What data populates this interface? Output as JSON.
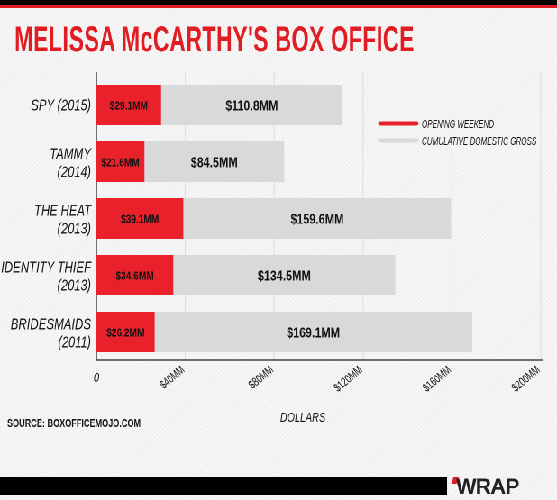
{
  "header": {
    "title": "MELISSA McCARTHY'S BOX OFFICE"
  },
  "footer": {
    "source": "SOURCE: BOXOFFICEMOJO.COM",
    "logo": "WRAP"
  },
  "colors": {
    "opening": "#e8212a",
    "cumulative": "#d9d9d9",
    "title": "#e11d24"
  },
  "chart_data": {
    "type": "bar",
    "orientation": "horizontal",
    "title": "MELISSA McCARTHY'S BOX OFFICE",
    "xlabel": "DOLLARS",
    "ylabel": "",
    "xlim": [
      0,
      200
    ],
    "x_ticks": [
      {
        "value": 0,
        "label": "0"
      },
      {
        "value": 40,
        "label": "$40MM"
      },
      {
        "value": 80,
        "label": "$80MM"
      },
      {
        "value": 120,
        "label": "$120MM"
      },
      {
        "value": 160,
        "label": "$160MM"
      },
      {
        "value": 200,
        "label": "$200MM"
      }
    ],
    "categories": [
      [
        "SPY (2015)"
      ],
      [
        "TAMMY",
        "(2014)"
      ],
      [
        "THE HEAT",
        "(2013)"
      ],
      [
        "IDENTITY THIEF",
        "(2013)"
      ],
      [
        "BRIDESMAIDS",
        "(2011)"
      ]
    ],
    "series": [
      {
        "name": "CUMULATIVE DOMESTIC GROSS",
        "values": [
          110.8,
          84.5,
          159.6,
          134.5,
          169.1
        ],
        "labels": [
          "$110.8MM",
          "$84.5MM",
          "$159.6MM",
          "$134.5MM",
          "$169.1MM"
        ]
      },
      {
        "name": "OPENING WEEKEND",
        "values": [
          29.1,
          21.6,
          39.1,
          34.6,
          26.2
        ],
        "labels": [
          "$29.1MM",
          "$21.6MM",
          "$39.1MM",
          "$34.6MM",
          "$26.2MM"
        ]
      }
    ],
    "legend": {
      "placement": "top-right",
      "entries": [
        "OPENING WEEKEND",
        "CUMULATIVE DOMESTIC GROSS"
      ]
    },
    "grid": true
  }
}
